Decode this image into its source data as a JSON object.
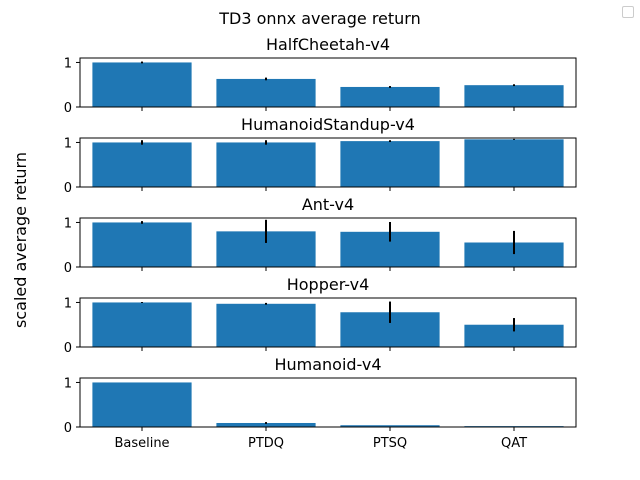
{
  "figure_title": "TD3 onnx average return",
  "ylabel": "scaled average return",
  "chart_data": [
    {
      "type": "bar",
      "title": "HalfCheetah-v4",
      "categories": [
        "Baseline",
        "PTDQ",
        "PTSQ",
        "QAT"
      ],
      "values": [
        1.0,
        0.63,
        0.45,
        0.49
      ],
      "errors": [
        0.02,
        0.03,
        0.02,
        0.02
      ],
      "ylim": [
        0,
        1.1
      ],
      "yticks": [
        "0",
        "1"
      ],
      "color": "#1f77b4"
    },
    {
      "type": "bar",
      "title": "HumanoidStandup-v4",
      "categories": [
        "Baseline",
        "PTDQ",
        "PTSQ",
        "QAT"
      ],
      "values": [
        1.0,
        1.0,
        1.03,
        1.07
      ],
      "errors": [
        0.05,
        0.05,
        0.02,
        0.01
      ],
      "ylim": [
        0,
        1.1
      ],
      "yticks": [
        "0",
        "1"
      ],
      "color": "#1f77b4"
    },
    {
      "type": "bar",
      "title": "Ant-v4",
      "categories": [
        "Baseline",
        "PTDQ",
        "PTSQ",
        "QAT"
      ],
      "values": [
        1.0,
        0.8,
        0.79,
        0.55
      ],
      "errors": [
        0.03,
        0.26,
        0.22,
        0.26
      ],
      "ylim": [
        0,
        1.1
      ],
      "yticks": [
        "0",
        "1"
      ],
      "color": "#1f77b4"
    },
    {
      "type": "bar",
      "title": "Hopper-v4",
      "categories": [
        "Baseline",
        "PTDQ",
        "PTSQ",
        "QAT"
      ],
      "values": [
        1.0,
        0.97,
        0.78,
        0.5
      ],
      "errors": [
        0.01,
        0.02,
        0.24,
        0.15
      ],
      "ylim": [
        0,
        1.1
      ],
      "yticks": [
        "0",
        "1"
      ],
      "color": "#1f77b4"
    },
    {
      "type": "bar",
      "title": "Humanoid-v4",
      "categories": [
        "Baseline",
        "PTDQ",
        "PTSQ",
        "QAT"
      ],
      "values": [
        1.0,
        0.09,
        0.04,
        0.02
      ],
      "errors": [
        0.0,
        0.02,
        0.0,
        0.0
      ],
      "ylim": [
        0,
        1.1
      ],
      "yticks": [
        "0",
        "1"
      ],
      "color": "#1f77b4"
    }
  ]
}
